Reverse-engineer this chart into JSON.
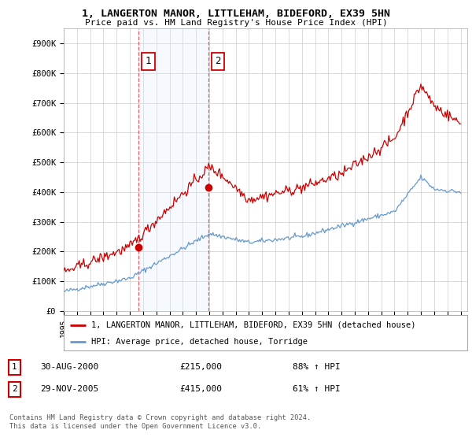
{
  "title_line1": "1, LANGERTON MANOR, LITTLEHAM, BIDEFORD, EX39 5HN",
  "title_line2": "Price paid vs. HM Land Registry's House Price Index (HPI)",
  "background_color": "#ffffff",
  "plot_bg_color": "#ffffff",
  "grid_color": "#cccccc",
  "red_line_color": "#cc0000",
  "blue_line_color": "#6699cc",
  "purchase1_x": 2000.67,
  "purchase1_y": 215000,
  "purchase1_label": "1",
  "purchase2_x": 2005.92,
  "purchase2_y": 415000,
  "purchase2_label": "2",
  "vline_color": "#dd4444",
  "span_color": "#ddeeff",
  "legend_entry1": "1, LANGERTON MANOR, LITTLEHAM, BIDEFORD, EX39 5HN (detached house)",
  "legend_entry2": "HPI: Average price, detached house, Torridge",
  "table_row1_num": "1",
  "table_row1_date": "30-AUG-2000",
  "table_row1_price": "£215,000",
  "table_row1_hpi": "88% ↑ HPI",
  "table_row2_num": "2",
  "table_row2_date": "29-NOV-2005",
  "table_row2_price": "£415,000",
  "table_row2_hpi": "61% ↑ HPI",
  "footer": "Contains HM Land Registry data © Crown copyright and database right 2024.\nThis data is licensed under the Open Government Licence v3.0.",
  "ylim_max": 950000,
  "xmin": 1995.0,
  "xmax": 2025.5,
  "yticks": [
    0,
    100000,
    200000,
    300000,
    400000,
    500000,
    600000,
    700000,
    800000,
    900000
  ],
  "ylabels": [
    "£0",
    "£100K",
    "£200K",
    "£300K",
    "£400K",
    "£500K",
    "£600K",
    "£700K",
    "£800K",
    "£900K"
  ]
}
